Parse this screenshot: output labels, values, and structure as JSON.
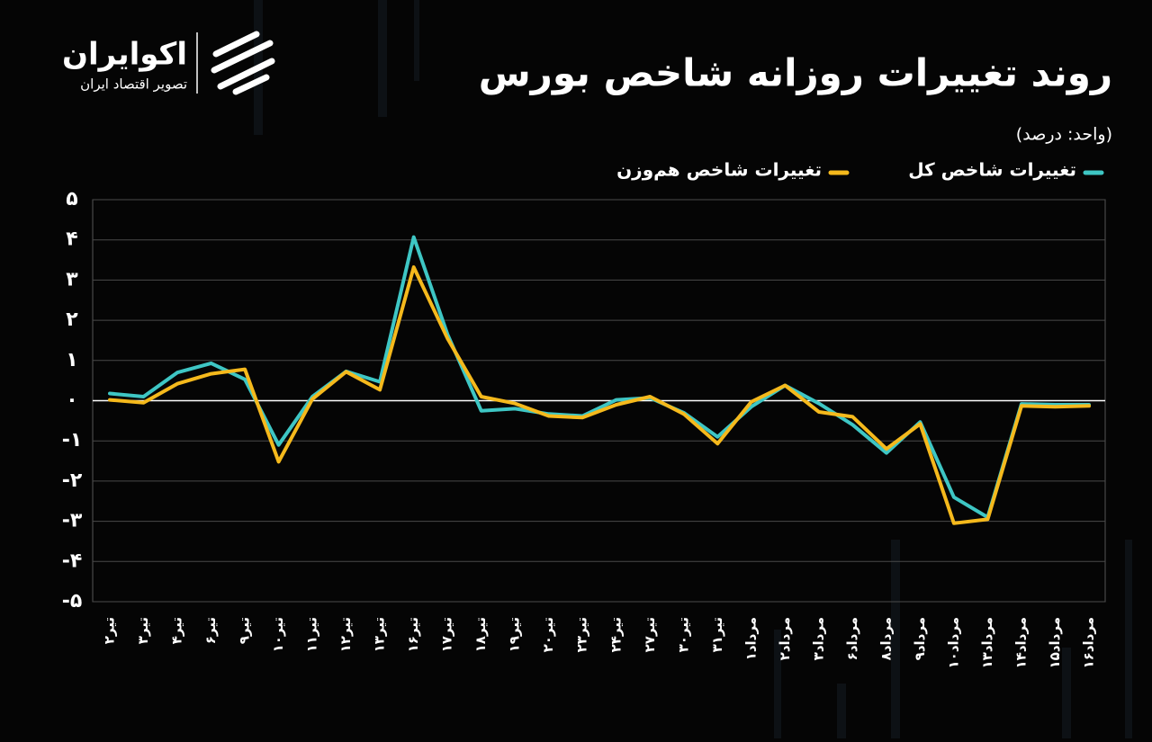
{
  "logo": {
    "name": "اکوایران",
    "tagline": "تصویر اقتصاد ایران"
  },
  "chart_data": {
    "type": "line",
    "title": "روند تغییرات روزانه شاخص بورس",
    "subtitle": "(واحد: درصد)",
    "categories": [
      "تیر۲",
      "تیر۳",
      "تیر۴",
      "تیر۶",
      "تیر۹",
      "تیر۱۰",
      "تیر۱۱",
      "تیر۱۲",
      "تیر۱۳",
      "تیر۱۶",
      "تیر۱۷",
      "تیر۱۸",
      "تیر۱۹",
      "تیر۲۰",
      "تیر۲۳",
      "تیر۲۴",
      "تیر۲۷",
      "تیر۳۰",
      "تیر۳۱",
      "مرداد۱",
      "مرداد۲",
      "مرداد۳",
      "مرداد۶",
      "مرداد۸",
      "مرداد۹",
      "مرداد۱۰",
      "مرداد۱۳",
      "مرداد۱۴",
      "مرداد۱۵",
      "مرداد۱۶"
    ],
    "series": [
      {
        "name": "تغییرات شاخص کل",
        "color": "#3ec6c4",
        "values": [
          0.18,
          0.1,
          0.7,
          0.93,
          0.53,
          -1.1,
          0.1,
          0.73,
          0.47,
          4.07,
          1.65,
          -0.25,
          -0.2,
          -0.33,
          -0.38,
          0.02,
          0.07,
          -0.3,
          -0.9,
          -0.15,
          0.38,
          -0.07,
          -0.6,
          -1.3,
          -0.53,
          -2.4,
          -2.9,
          -0.08,
          -0.1,
          -0.1
        ]
      },
      {
        "name": "تغییرات شاخص هم‌وزن",
        "color": "#f5b91c",
        "values": [
          0.02,
          -0.05,
          0.42,
          0.67,
          0.78,
          -1.52,
          0.04,
          0.72,
          0.27,
          3.32,
          1.55,
          0.1,
          -0.07,
          -0.38,
          -0.42,
          -0.1,
          0.1,
          -0.33,
          -1.07,
          -0.03,
          0.38,
          -0.28,
          -0.4,
          -1.2,
          -0.58,
          -3.05,
          -2.95,
          -0.13,
          -0.15,
          -0.13
        ]
      }
    ],
    "ylim": [
      -5,
      5
    ],
    "yticks": [
      {
        "value": 5,
        "label": "۵"
      },
      {
        "value": 4,
        "label": "۴"
      },
      {
        "value": 3,
        "label": "۳"
      },
      {
        "value": 2,
        "label": "۲"
      },
      {
        "value": 1,
        "label": "۱"
      },
      {
        "value": 0,
        "label": "۰"
      },
      {
        "value": -1,
        "label": "-۱"
      },
      {
        "value": -2,
        "label": "-۲"
      },
      {
        "value": -3,
        "label": "-۳"
      },
      {
        "value": -4,
        "label": "-۴"
      },
      {
        "value": -5,
        "label": "-۵"
      }
    ],
    "grid": true
  }
}
